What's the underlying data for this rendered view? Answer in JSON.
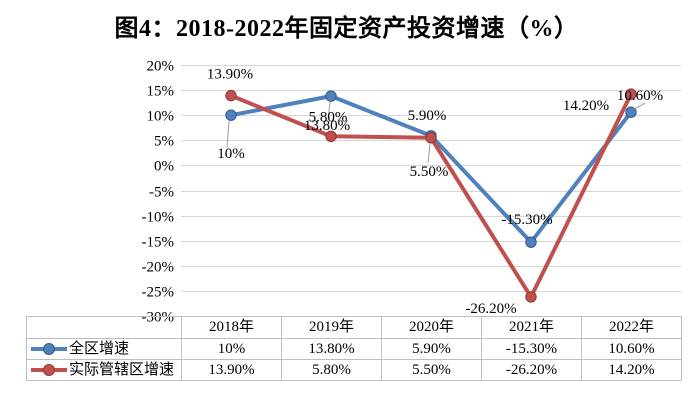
{
  "chart_data": {
    "type": "line",
    "title": "图4：2018-2022年固定资产投资增速（%）",
    "categories": [
      "2018年",
      "2019年",
      "2020年",
      "2021年",
      "2022年"
    ],
    "series": [
      {
        "name": "全区增速",
        "color": "#4f81bd",
        "marker_stroke": "#36597f",
        "values": [
          10,
          13.8,
          5.9,
          -15.3,
          10.6
        ],
        "labels": [
          "10%",
          "13.80%",
          "5.90%",
          "-15.30%",
          "10.60%"
        ]
      },
      {
        "name": "实际管辖区增速",
        "color": "#c0504d",
        "marker_stroke": "#8e3a37",
        "values": [
          13.9,
          5.8,
          5.5,
          -26.2,
          14.2
        ],
        "labels": [
          "13.90%",
          "5.80%",
          "5.50%",
          "-26.20%",
          "14.20%"
        ]
      }
    ],
    "ylim": [
      -30,
      20
    ],
    "ytick_step": 5,
    "ytick_labels": [
      "20%",
      "15%",
      "10%",
      "5%",
      "0%",
      "-5%",
      "-10%",
      "-15%",
      "-20%",
      "-25%",
      "-30%"
    ],
    "grid": true,
    "gridline_color": "#d6d6d6",
    "leader_color": "#9c9c9c",
    "legend_position": "bottom-table"
  }
}
